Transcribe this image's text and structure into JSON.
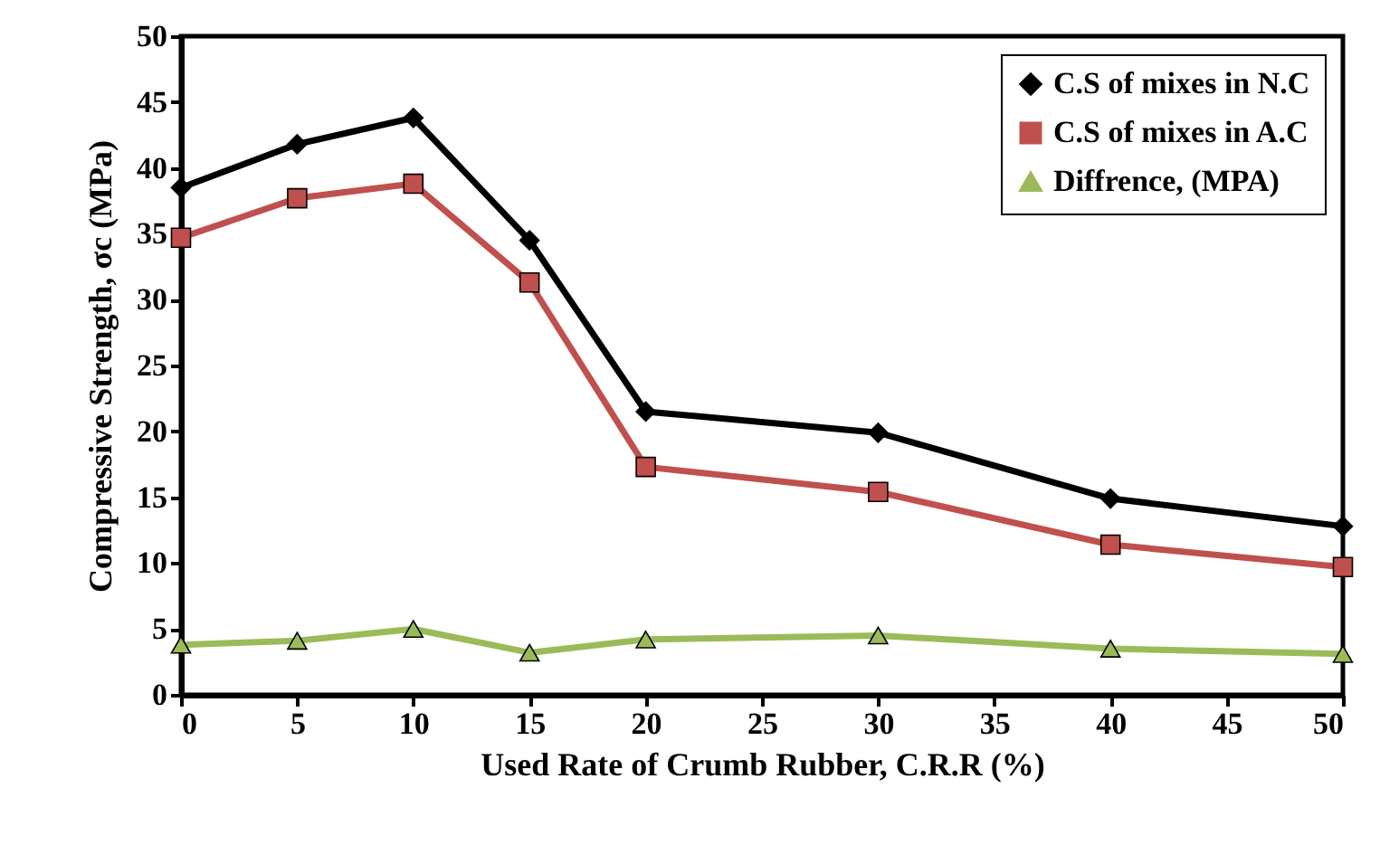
{
  "chart_data": {
    "type": "line",
    "xlabel": "Used Rate of Crumb Rubber, C.R.R (%)",
    "ylabel": "Compressive Strength, σc (MPa)",
    "x": [
      0,
      5,
      10,
      15,
      20,
      30,
      40,
      50
    ],
    "series": [
      {
        "name": "C.S of mixes in N.C",
        "color": "#000000",
        "marker": "diamond",
        "values": [
          38.5,
          41.8,
          43.8,
          34.5,
          21.5,
          19.9,
          14.9,
          12.8
        ]
      },
      {
        "name": "C.S of mixes in A.C",
        "color": "#c0504d",
        "marker": "square",
        "values": [
          34.7,
          37.7,
          38.8,
          31.3,
          17.3,
          15.4,
          11.4,
          9.7
        ]
      },
      {
        "name": "Diffrence, (MPA)",
        "color": "#9bbb59",
        "marker": "triangle",
        "values": [
          3.8,
          4.1,
          5.0,
          3.2,
          4.2,
          4.5,
          3.5,
          3.1
        ]
      }
    ],
    "xlim": [
      0,
      50
    ],
    "xticks": [
      0,
      5,
      10,
      15,
      20,
      25,
      30,
      35,
      40,
      45,
      50
    ],
    "ylim": [
      0,
      50
    ],
    "yticks": [
      0,
      5,
      10,
      15,
      20,
      25,
      30,
      35,
      40,
      45,
      50
    ],
    "grid": false,
    "legend": "top right",
    "line_style": "solid"
  }
}
